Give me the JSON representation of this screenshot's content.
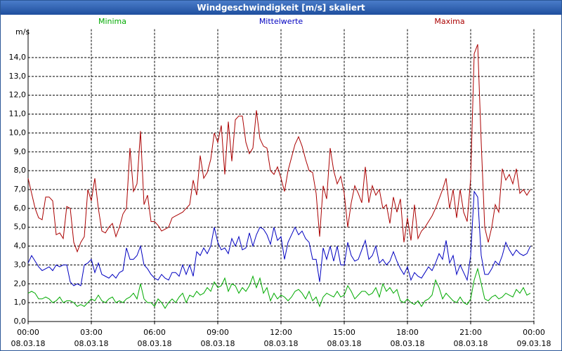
{
  "window_title": "Windgeschwindigkeit [m/s] skaliert",
  "chart_data": {
    "type": "line",
    "ylabel": "m/s",
    "x": [
      0,
      10,
      20,
      30,
      40,
      50,
      60,
      70,
      80,
      90,
      100,
      110,
      120,
      130,
      140,
      150,
      160,
      170,
      180,
      190,
      200,
      210,
      220,
      230,
      240,
      250,
      260,
      270,
      280,
      290,
      300,
      310,
      320,
      330,
      340,
      350,
      360,
      370,
      380,
      390,
      400,
      410,
      420,
      430,
      440,
      450,
      460,
      470,
      480,
      490,
      500,
      510,
      520,
      530,
      540,
      550,
      560,
      570,
      580,
      590,
      600,
      610,
      620,
      630,
      640,
      650,
      660,
      670,
      680,
      690,
      700,
      710,
      720,
      730,
      740,
      750,
      760,
      770,
      780,
      790,
      800,
      810,
      820,
      830,
      840,
      850,
      860,
      870,
      880,
      890,
      900,
      910,
      920,
      930,
      940,
      950,
      960,
      970,
      980,
      990,
      1000,
      1010,
      1020,
      1030,
      1040,
      1050,
      1060,
      1070,
      1080,
      1090,
      1100,
      1110,
      1120,
      1130,
      1140,
      1150,
      1160,
      1170,
      1180,
      1190,
      1200,
      1210,
      1220,
      1230,
      1240,
      1250,
      1260,
      1270,
      1280,
      1290,
      1300,
      1310,
      1320,
      1330,
      1340,
      1350,
      1360,
      1370,
      1380,
      1390,
      1400,
      1410,
      1420,
      1430
    ],
    "xlim": [
      0,
      1440
    ],
    "xticks": [
      {
        "value": 0,
        "label": [
          "00:00",
          "08.03.18"
        ]
      },
      {
        "value": 180,
        "label": [
          "03:00",
          "08.03.18"
        ]
      },
      {
        "value": 360,
        "label": [
          "06:00",
          "08.03.18"
        ]
      },
      {
        "value": 540,
        "label": [
          "09:00",
          "08.03.18"
        ]
      },
      {
        "value": 720,
        "label": [
          "12:00",
          "08.03.18"
        ]
      },
      {
        "value": 900,
        "label": [
          "15:00",
          "08.03.18"
        ]
      },
      {
        "value": 1080,
        "label": [
          "18:00",
          "08.03.18"
        ]
      },
      {
        "value": 1260,
        "label": [
          "21:00",
          "08.03.18"
        ]
      },
      {
        "value": 1440,
        "label": [
          "00:00",
          "09.03.18"
        ]
      }
    ],
    "ylim": [
      0,
      15.5
    ],
    "yticks": [
      {
        "value": 0,
        "label": "0,0"
      },
      {
        "value": 1,
        "label": "1,0"
      },
      {
        "value": 2,
        "label": "2,0"
      },
      {
        "value": 3,
        "label": "3,0"
      },
      {
        "value": 4,
        "label": "4,0"
      },
      {
        "value": 5,
        "label": "5,0"
      },
      {
        "value": 6,
        "label": "6,0"
      },
      {
        "value": 7,
        "label": "7,0"
      },
      {
        "value": 8,
        "label": "8,0"
      },
      {
        "value": 9,
        "label": "9,0"
      },
      {
        "value": 10,
        "label": "10,0"
      },
      {
        "value": 11,
        "label": "11,0"
      },
      {
        "value": 12,
        "label": "12,0"
      },
      {
        "value": 13,
        "label": "13,0"
      },
      {
        "value": 14,
        "label": "14,0"
      }
    ],
    "grid": true,
    "series": [
      {
        "name": "Minima",
        "color": "#00aa00",
        "values": [
          1.5,
          1.6,
          1.5,
          1.2,
          1.2,
          1.3,
          1.2,
          1.0,
          1.1,
          1.3,
          1.0,
          1.1,
          1.1,
          1.0,
          0.8,
          0.9,
          0.8,
          1.0,
          1.2,
          1.1,
          1.4,
          1.1,
          1.0,
          1.2,
          1.3,
          1.0,
          1.1,
          1.0,
          1.2,
          1.3,
          1.5,
          1.2,
          2.0,
          1.2,
          1.0,
          1.0,
          0.8,
          1.2,
          1.0,
          0.7,
          1.0,
          1.2,
          1.0,
          1.3,
          1.5,
          1.0,
          1.4,
          1.3,
          1.6,
          1.4,
          1.5,
          1.8,
          1.6,
          2.1,
          1.8,
          1.9,
          2.3,
          1.6,
          2.0,
          1.9,
          1.5,
          1.8,
          1.6,
          1.9,
          2.4,
          1.8,
          2.3,
          1.5,
          1.8,
          1.1,
          1.5,
          1.2,
          1.4,
          1.3,
          1.1,
          1.3,
          1.6,
          1.7,
          1.5,
          1.2,
          1.6,
          1.1,
          1.3,
          0.8,
          1.3,
          1.5,
          1.4,
          1.3,
          1.6,
          1.3,
          1.4,
          1.9,
          1.6,
          1.2,
          1.4,
          1.6,
          1.6,
          1.4,
          1.5,
          1.8,
          1.3,
          2.0,
          1.6,
          1.8,
          1.5,
          1.7,
          1.1,
          1.0,
          1.2,
          1.0,
          0.9,
          1.1,
          0.8,
          1.1,
          1.2,
          1.4,
          2.2,
          1.8,
          1.2,
          1.5,
          1.3,
          1.1,
          1.0,
          1.3,
          1.0,
          0.9,
          1.2,
          2.2,
          2.8,
          2.0,
          1.2,
          1.1,
          1.3,
          1.4,
          1.2,
          1.3,
          1.5,
          1.4,
          1.3,
          1.7,
          1.5,
          1.8,
          1.4,
          1.5
        ]
      },
      {
        "name": "Mittelwerte",
        "color": "#0000c0",
        "values": [
          3.1,
          3.5,
          3.2,
          2.9,
          2.7,
          2.8,
          2.9,
          2.7,
          3.0,
          2.9,
          3.0,
          3.0,
          2.1,
          1.9,
          2.0,
          1.9,
          3.0,
          3.1,
          3.3,
          2.6,
          3.1,
          2.5,
          2.4,
          2.3,
          2.5,
          2.3,
          2.6,
          2.7,
          3.9,
          3.3,
          3.3,
          3.5,
          4.0,
          3.0,
          2.8,
          2.5,
          2.3,
          2.2,
          2.5,
          2.3,
          2.2,
          2.6,
          2.6,
          2.4,
          3.0,
          2.5,
          3.0,
          2.4,
          3.7,
          3.5,
          3.9,
          3.6,
          4.0,
          5.0,
          4.2,
          3.8,
          3.9,
          3.6,
          4.4,
          4.0,
          4.5,
          3.8,
          3.9,
          4.7,
          4.0,
          4.6,
          5.0,
          4.9,
          4.6,
          4.1,
          5.0,
          4.3,
          4.5,
          3.3,
          4.2,
          4.6,
          5.0,
          4.6,
          4.8,
          4.4,
          4.2,
          3.3,
          3.3,
          2.1,
          3.9,
          3.3,
          4.0,
          3.2,
          4.0,
          3.0,
          3.0,
          4.2,
          3.5,
          3.2,
          3.3,
          3.8,
          4.3,
          3.3,
          3.5,
          4.0,
          3.1,
          3.3,
          3.0,
          3.2,
          3.7,
          3.2,
          2.8,
          2.5,
          2.9,
          2.2,
          2.6,
          2.4,
          2.3,
          2.6,
          2.9,
          2.7,
          3.1,
          3.6,
          3.3,
          4.3,
          3.1,
          3.5,
          2.5,
          3.0,
          2.6,
          2.2,
          3.5,
          6.9,
          6.6,
          3.5,
          2.5,
          2.5,
          2.8,
          3.2,
          3.0,
          3.5,
          4.2,
          3.8,
          3.5,
          3.8,
          3.6,
          3.5,
          3.6,
          4.0
        ]
      },
      {
        "name": "Maxima",
        "color": "#aa0000",
        "values": [
          7.6,
          6.8,
          6.0,
          5.5,
          5.4,
          6.6,
          6.6,
          6.4,
          4.6,
          4.7,
          4.4,
          6.1,
          6.0,
          4.2,
          3.7,
          4.2,
          4.5,
          7.0,
          6.4,
          7.6,
          6.0,
          4.8,
          4.7,
          5.0,
          5.2,
          4.5,
          5.0,
          5.7,
          6.0,
          9.2,
          6.9,
          7.3,
          10.1,
          6.2,
          6.7,
          5.3,
          5.3,
          5.1,
          4.8,
          4.9,
          5.0,
          5.5,
          5.6,
          5.7,
          5.8,
          6.0,
          6.2,
          7.5,
          6.7,
          8.8,
          7.6,
          7.9,
          8.6,
          10.0,
          9.5,
          10.4,
          7.8,
          10.6,
          8.5,
          10.7,
          10.9,
          10.9,
          9.5,
          8.9,
          9.2,
          11.2,
          9.7,
          9.3,
          9.2,
          8.0,
          7.8,
          8.2,
          7.6,
          6.9,
          8.0,
          8.7,
          9.4,
          9.8,
          9.3,
          8.6,
          8.0,
          7.9,
          6.8,
          4.5,
          7.2,
          6.5,
          9.2,
          8.0,
          7.3,
          7.7,
          6.8,
          5.0,
          6.3,
          7.2,
          6.8,
          6.3,
          8.2,
          6.3,
          7.2,
          6.7,
          7.0,
          6.0,
          6.2,
          5.2,
          6.6,
          5.8,
          6.5,
          4.2,
          5.5,
          4.3,
          6.2,
          4.4,
          4.8,
          5.0,
          5.3,
          5.6,
          6.0,
          6.5,
          7.0,
          7.6,
          6.0,
          7.0,
          5.5,
          7.0,
          5.8,
          5.3,
          7.6,
          14.2,
          14.7,
          9.5,
          5.0,
          4.2,
          5.0,
          6.2,
          5.8,
          8.1,
          7.5,
          7.8,
          7.3,
          8.1,
          6.8,
          7.0,
          6.7,
          7.0
        ]
      }
    ]
  }
}
